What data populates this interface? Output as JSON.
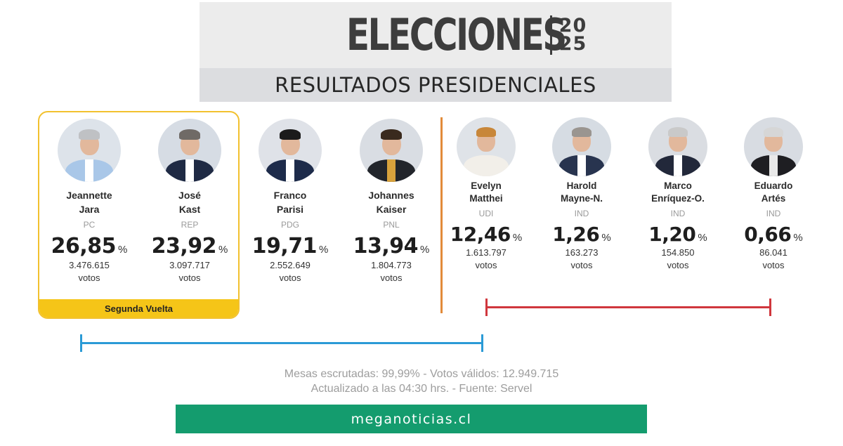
{
  "header": {
    "logo_word": "ELECCIONES",
    "logo_year_top": "20",
    "logo_year_bottom": "25",
    "subtitle": "RESULTADOS PRESIDENCIALES"
  },
  "second_round_label": "Segunda Vuelta",
  "candidates": [
    {
      "first": "Jeannette",
      "last": "Jara",
      "party": "PC",
      "pct": "26,85",
      "votes": "3.476.615",
      "votes_label": "votos",
      "hair": "#bfc1c4",
      "body": "#a9c7e8",
      "shirt": "#ffffff",
      "bg": "#dde3ea"
    },
    {
      "first": "José",
      "last": "Kast",
      "party": "REP",
      "pct": "23,92",
      "votes": "3.097.717",
      "votes_label": "votos",
      "hair": "#6f6a66",
      "body": "#1f2a44",
      "shirt": "#ffffff",
      "bg": "#d6dce4"
    },
    {
      "first": "Franco",
      "last": "Parisi",
      "party": "PDG",
      "pct": "19,71",
      "votes": "2.552.649",
      "votes_label": "votos",
      "hair": "#1b1b1b",
      "body": "#1d2b4a",
      "shirt": "#ffffff",
      "bg": "#dfe2e8"
    },
    {
      "first": "Johannes",
      "last": "Kaiser",
      "party": "PNL",
      "pct": "13,94",
      "votes": "1.804.773",
      "votes_label": "votos",
      "hair": "#3a2a1e",
      "body": "#22252b",
      "shirt": "#d8a23c",
      "bg": "#d9dde3"
    },
    {
      "first": "Evelyn",
      "last": "Matthei",
      "party": "UDI",
      "pct": "12,46",
      "votes": "1.613.797",
      "votes_label": "votos",
      "hair": "#c8873a",
      "body": "#f2efe9",
      "shirt": "#f2efe9",
      "bg": "#dfe3e8"
    },
    {
      "first": "Harold",
      "last": "Mayne-N.",
      "party": "IND",
      "pct": "1,26",
      "votes": "163.273",
      "votes_label": "votos",
      "hair": "#9a9590",
      "body": "#28344f",
      "shirt": "#ffffff",
      "bg": "#d6dce3"
    },
    {
      "first": "Marco",
      "last": "Enríquez-O.",
      "party": "IND",
      "pct": "1,20",
      "votes": "154.850",
      "votes_label": "votos",
      "hair": "#c9c9c9",
      "body": "#22283a",
      "shirt": "#ffffff",
      "bg": "#dadde2"
    },
    {
      "first": "Eduardo",
      "last": "Artés",
      "party": "IND",
      "pct": "0,66",
      "votes": "86.041",
      "votes_label": "votos",
      "hair": "#d6d6d6",
      "body": "#1e1e22",
      "shirt": "#e9e9e9",
      "bg": "#d8dce2"
    }
  ],
  "footer": {
    "line1": "Mesas escrutadas: 99,99%  -  Votos válidos: 12.949.715",
    "line2": "Actualizado a las 04:30 hrs. -   Fuente: Servel",
    "brand": "meganoticias.cl"
  },
  "colors": {
    "winner_border": "#f2c12e",
    "winner_strip": "#f5c518",
    "divider": "#e28b3a",
    "bracket_red": "#d0373d",
    "bracket_blue": "#2b9bd6",
    "brand_bar": "#149c6e"
  }
}
